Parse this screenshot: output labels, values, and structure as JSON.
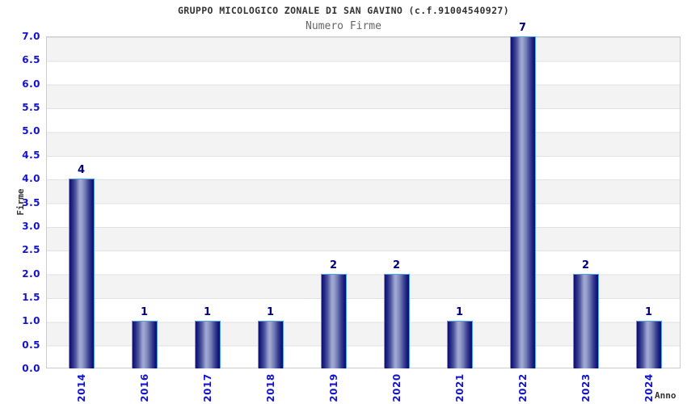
{
  "chart_data": {
    "type": "bar",
    "title": "GRUPPO MICOLOGICO ZONALE DI SAN GAVINO (c.f.91004540927)",
    "subtitle": "Numero Firme",
    "xlabel": "Anno",
    "ylabel": "Firme",
    "categories": [
      "2014",
      "2016",
      "2017",
      "2018",
      "2019",
      "2020",
      "2021",
      "2022",
      "2023",
      "2024"
    ],
    "values": [
      4,
      1,
      1,
      1,
      2,
      2,
      1,
      7,
      2,
      1
    ],
    "ylim": [
      0,
      7
    ],
    "ytick_step": 0.5,
    "ytick_labels": [
      "0.0",
      "0.5",
      "1.0",
      "1.5",
      "2.0",
      "2.5",
      "3.0",
      "3.5",
      "4.0",
      "4.5",
      "5.0",
      "5.5",
      "6.0",
      "6.5",
      "7.0"
    ],
    "grid": "horizontal-bands",
    "legend": null,
    "colors": {
      "tick_label": "#1414cc",
      "value_label": "#00007e",
      "bar_dark": "#10106e",
      "bar_highlight": "#a2abd3",
      "bar_border": "#49a0f5",
      "band_gray": "#f3f3f3",
      "band_white": "#ffffff",
      "gridline": "#e2e2e2",
      "plot_border": "#cccccc",
      "title_color": "#333333",
      "subtitle_color": "#666666",
      "axis_title_color": "#333333"
    }
  }
}
